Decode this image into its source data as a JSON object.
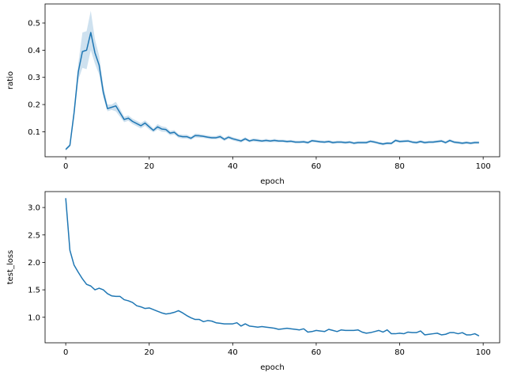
{
  "chart_data": [
    {
      "type": "line",
      "xlabel": "epoch",
      "ylabel": "ratio",
      "xlim": [
        -4.95,
        103.95
      ],
      "ylim": [
        0.008,
        0.57
      ],
      "xticks": [
        0,
        20,
        40,
        60,
        80,
        100
      ],
      "yticks": [
        0.1,
        0.2,
        0.3,
        0.4,
        0.5
      ],
      "ytick_format": 1,
      "grid": false,
      "legend": "none",
      "series": [
        {
          "color": "#1f77b4",
          "confidence_band": true,
          "x": [
            0,
            1,
            2,
            3,
            4,
            5,
            6,
            7,
            8,
            9,
            10,
            11,
            12,
            13,
            14,
            15,
            16,
            17,
            18,
            19,
            20,
            21,
            22,
            23,
            24,
            25,
            26,
            27,
            28,
            29,
            30,
            31,
            32,
            33,
            34,
            35,
            36,
            37,
            38,
            39,
            40,
            41,
            42,
            43,
            44,
            45,
            46,
            47,
            48,
            49,
            50,
            51,
            52,
            53,
            54,
            55,
            56,
            57,
            58,
            59,
            60,
            61,
            62,
            63,
            64,
            65,
            66,
            67,
            68,
            69,
            70,
            71,
            72,
            73,
            74,
            75,
            76,
            77,
            78,
            79,
            80,
            81,
            82,
            83,
            84,
            85,
            86,
            87,
            88,
            89,
            90,
            91,
            92,
            93,
            94,
            95,
            96,
            97,
            98,
            99
          ],
          "y": [
            0.035,
            0.05,
            0.17,
            0.32,
            0.395,
            0.4,
            0.465,
            0.39,
            0.345,
            0.245,
            0.185,
            0.19,
            0.195,
            0.17,
            0.145,
            0.15,
            0.138,
            0.13,
            0.122,
            0.132,
            0.118,
            0.105,
            0.118,
            0.11,
            0.108,
            0.095,
            0.098,
            0.085,
            0.082,
            0.082,
            0.076,
            0.086,
            0.085,
            0.083,
            0.08,
            0.078,
            0.078,
            0.082,
            0.072,
            0.08,
            0.074,
            0.07,
            0.066,
            0.074,
            0.066,
            0.07,
            0.068,
            0.066,
            0.068,
            0.066,
            0.068,
            0.066,
            0.066,
            0.064,
            0.065,
            0.062,
            0.062,
            0.063,
            0.06,
            0.067,
            0.065,
            0.063,
            0.062,
            0.064,
            0.06,
            0.062,
            0.062,
            0.06,
            0.062,
            0.058,
            0.06,
            0.06,
            0.06,
            0.065,
            0.062,
            0.058,
            0.055,
            0.058,
            0.057,
            0.068,
            0.064,
            0.065,
            0.066,
            0.062,
            0.06,
            0.064,
            0.06,
            0.062,
            0.062,
            0.064,
            0.066,
            0.06,
            0.068,
            0.062,
            0.06,
            0.058,
            0.06,
            0.058,
            0.06,
            0.06
          ],
          "lower": [
            0.03,
            0.045,
            0.15,
            0.29,
            0.335,
            0.33,
            0.4,
            0.35,
            0.31,
            0.225,
            0.175,
            0.18,
            0.175,
            0.155,
            0.135,
            0.14,
            0.128,
            0.12,
            0.112,
            0.122,
            0.108,
            0.098,
            0.108,
            0.1,
            0.099,
            0.087,
            0.09,
            0.078,
            0.075,
            0.075,
            0.07,
            0.079,
            0.078,
            0.077,
            0.074,
            0.072,
            0.072,
            0.075,
            0.066,
            0.074,
            0.068,
            0.064,
            0.06,
            0.068,
            0.061,
            0.064,
            0.062,
            0.061,
            0.062,
            0.061,
            0.062,
            0.061,
            0.061,
            0.059,
            0.06,
            0.057,
            0.057,
            0.058,
            0.055,
            0.062,
            0.06,
            0.058,
            0.057,
            0.059,
            0.055,
            0.057,
            0.057,
            0.055,
            0.057,
            0.053,
            0.055,
            0.055,
            0.055,
            0.06,
            0.057,
            0.053,
            0.05,
            0.053,
            0.052,
            0.063,
            0.059,
            0.06,
            0.061,
            0.057,
            0.055,
            0.059,
            0.055,
            0.057,
            0.057,
            0.059,
            0.061,
            0.055,
            0.063,
            0.057,
            0.055,
            0.053,
            0.055,
            0.053,
            0.055,
            0.055
          ],
          "upper": [
            0.04,
            0.055,
            0.19,
            0.35,
            0.465,
            0.47,
            0.545,
            0.44,
            0.38,
            0.27,
            0.2,
            0.2,
            0.21,
            0.185,
            0.155,
            0.16,
            0.148,
            0.14,
            0.132,
            0.142,
            0.128,
            0.112,
            0.128,
            0.12,
            0.117,
            0.103,
            0.106,
            0.092,
            0.089,
            0.089,
            0.082,
            0.093,
            0.092,
            0.089,
            0.086,
            0.084,
            0.084,
            0.089,
            0.078,
            0.086,
            0.08,
            0.076,
            0.072,
            0.08,
            0.071,
            0.076,
            0.074,
            0.071,
            0.074,
            0.071,
            0.074,
            0.071,
            0.071,
            0.069,
            0.07,
            0.067,
            0.067,
            0.068,
            0.065,
            0.072,
            0.07,
            0.068,
            0.067,
            0.069,
            0.065,
            0.067,
            0.067,
            0.065,
            0.067,
            0.063,
            0.065,
            0.065,
            0.065,
            0.07,
            0.067,
            0.063,
            0.06,
            0.063,
            0.062,
            0.073,
            0.069,
            0.07,
            0.071,
            0.067,
            0.065,
            0.069,
            0.065,
            0.067,
            0.067,
            0.069,
            0.071,
            0.065,
            0.073,
            0.067,
            0.065,
            0.063,
            0.065,
            0.063,
            0.065,
            0.065
          ]
        }
      ]
    },
    {
      "type": "line",
      "xlabel": "epoch",
      "ylabel": "test_loss",
      "xlim": [
        -4.95,
        103.95
      ],
      "ylim": [
        0.535,
        3.29
      ],
      "xticks": [
        0,
        20,
        40,
        60,
        80,
        100
      ],
      "yticks": [
        1.0,
        1.5,
        2.0,
        2.5,
        3.0
      ],
      "ytick_format": 1,
      "grid": false,
      "legend": "none",
      "series": [
        {
          "color": "#1f77b4",
          "confidence_band": false,
          "x": [
            0,
            1,
            2,
            3,
            4,
            5,
            6,
            7,
            8,
            9,
            10,
            11,
            12,
            13,
            14,
            15,
            16,
            17,
            18,
            19,
            20,
            21,
            22,
            23,
            24,
            25,
            26,
            27,
            28,
            29,
            30,
            31,
            32,
            33,
            34,
            35,
            36,
            37,
            38,
            39,
            40,
            41,
            42,
            43,
            44,
            45,
            46,
            47,
            48,
            49,
            50,
            51,
            52,
            53,
            54,
            55,
            56,
            57,
            58,
            59,
            60,
            61,
            62,
            63,
            64,
            65,
            66,
            67,
            68,
            69,
            70,
            71,
            72,
            73,
            74,
            75,
            76,
            77,
            78,
            79,
            80,
            81,
            82,
            83,
            84,
            85,
            86,
            87,
            88,
            89,
            90,
            91,
            92,
            93,
            94,
            95,
            96,
            97,
            98,
            99
          ],
          "y": [
            3.17,
            2.22,
            1.95,
            1.82,
            1.7,
            1.6,
            1.57,
            1.5,
            1.53,
            1.5,
            1.43,
            1.39,
            1.38,
            1.38,
            1.32,
            1.3,
            1.27,
            1.21,
            1.19,
            1.16,
            1.17,
            1.14,
            1.11,
            1.08,
            1.06,
            1.07,
            1.09,
            1.12,
            1.08,
            1.03,
            0.99,
            0.96,
            0.96,
            0.92,
            0.94,
            0.93,
            0.9,
            0.89,
            0.88,
            0.88,
            0.88,
            0.9,
            0.84,
            0.88,
            0.84,
            0.83,
            0.82,
            0.83,
            0.82,
            0.81,
            0.8,
            0.78,
            0.79,
            0.8,
            0.79,
            0.78,
            0.77,
            0.79,
            0.73,
            0.74,
            0.76,
            0.75,
            0.74,
            0.78,
            0.76,
            0.74,
            0.77,
            0.76,
            0.76,
            0.76,
            0.77,
            0.73,
            0.71,
            0.72,
            0.74,
            0.76,
            0.73,
            0.77,
            0.7,
            0.7,
            0.71,
            0.7,
            0.73,
            0.72,
            0.72,
            0.75,
            0.68,
            0.69,
            0.7,
            0.71,
            0.68,
            0.69,
            0.72,
            0.72,
            0.7,
            0.72,
            0.68,
            0.68,
            0.7,
            0.66
          ]
        }
      ]
    }
  ]
}
